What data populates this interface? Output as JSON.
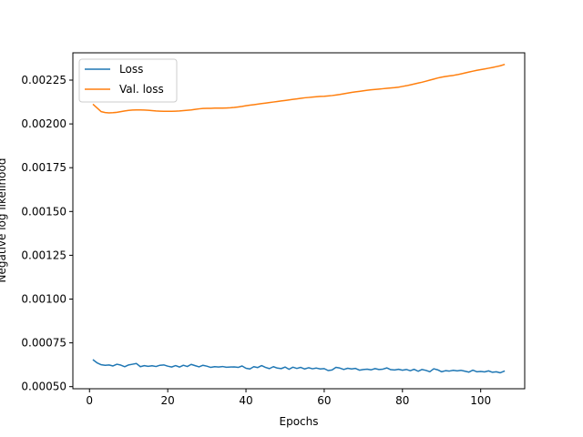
{
  "chart_data": {
    "type": "line",
    "title": "",
    "xlabel": "Epochs",
    "ylabel": "Negative log likelihood",
    "xlim": [
      -4.25,
      111.25
    ],
    "ylim": [
      0.000488,
      0.002406
    ],
    "xticks": [
      0,
      20,
      40,
      60,
      80,
      100
    ],
    "xtick_labels": [
      "0",
      "20",
      "40",
      "60",
      "80",
      "100"
    ],
    "yticks": [
      0.0005,
      0.00075,
      0.001,
      0.00125,
      0.0015,
      0.00175,
      0.002,
      0.00225
    ],
    "ytick_labels": [
      "0.00050",
      "0.00075",
      "0.00100",
      "0.00125",
      "0.00150",
      "0.00175",
      "0.00200",
      "0.00225"
    ],
    "grid": false,
    "legend_position": "upper-left",
    "series": [
      {
        "name": "Loss",
        "color": "#1f77b4",
        "x": [
          1,
          2,
          3,
          4,
          5,
          6,
          7,
          8,
          9,
          10,
          11,
          12,
          13,
          14,
          15,
          16,
          17,
          18,
          19,
          20,
          21,
          22,
          23,
          24,
          25,
          26,
          27,
          28,
          29,
          30,
          31,
          32,
          33,
          34,
          35,
          36,
          37,
          38,
          39,
          40,
          41,
          42,
          43,
          44,
          45,
          46,
          47,
          48,
          49,
          50,
          51,
          52,
          53,
          54,
          55,
          56,
          57,
          58,
          59,
          60,
          61,
          62,
          63,
          64,
          65,
          66,
          67,
          68,
          69,
          70,
          71,
          72,
          73,
          74,
          75,
          76,
          77,
          78,
          79,
          80,
          81,
          82,
          83,
          84,
          85,
          86,
          87,
          88,
          89,
          90,
          91,
          92,
          93,
          94,
          95,
          96,
          97,
          98,
          99,
          100,
          101,
          102,
          103,
          104,
          105,
          106
        ],
        "y": [
          0.000652,
          0.000635,
          0.000625,
          0.000622,
          0.000624,
          0.000618,
          0.000628,
          0.000623,
          0.000614,
          0.000624,
          0.000628,
          0.000632,
          0.000614,
          0.00062,
          0.000616,
          0.000619,
          0.000615,
          0.000622,
          0.000624,
          0.000617,
          0.000612,
          0.00062,
          0.000612,
          0.000622,
          0.000615,
          0.000627,
          0.00062,
          0.000613,
          0.000622,
          0.000617,
          0.00061,
          0.000614,
          0.000612,
          0.000615,
          0.000611,
          0.000612,
          0.000613,
          0.00061,
          0.000618,
          0.000605,
          0.000601,
          0.000614,
          0.000609,
          0.00062,
          0.00061,
          0.000603,
          0.000614,
          0.000606,
          0.000603,
          0.000612,
          0.000599,
          0.000611,
          0.000604,
          0.00061,
          0.000601,
          0.000608,
          0.000602,
          0.000606,
          0.000601,
          0.000603,
          0.000592,
          0.000595,
          0.00061,
          0.000606,
          0.000598,
          0.000605,
          0.000601,
          0.000604,
          0.000594,
          0.000598,
          0.0006,
          0.000596,
          0.000603,
          0.000598,
          0.0006,
          0.000607,
          0.000597,
          0.000595,
          0.000599,
          0.000594,
          0.000598,
          0.000591,
          0.000599,
          0.000588,
          0.000598,
          0.000593,
          0.000585,
          0.000602,
          0.000596,
          0.000585,
          0.000591,
          0.000589,
          0.000593,
          0.00059,
          0.000593,
          0.000588,
          0.000583,
          0.000594,
          0.000585,
          0.000587,
          0.000584,
          0.00059,
          0.000582,
          0.000585,
          0.000579,
          0.000588
        ]
      },
      {
        "name": "Val. loss",
        "color": "#ff7f0e",
        "x": [
          1,
          2,
          3,
          4,
          5,
          6,
          7,
          8,
          9,
          10,
          11,
          12,
          13,
          14,
          15,
          16,
          17,
          18,
          19,
          20,
          21,
          22,
          23,
          24,
          25,
          26,
          27,
          28,
          29,
          30,
          31,
          32,
          33,
          34,
          35,
          36,
          37,
          38,
          39,
          40,
          41,
          42,
          43,
          44,
          45,
          46,
          47,
          48,
          49,
          50,
          51,
          52,
          53,
          54,
          55,
          56,
          57,
          58,
          59,
          60,
          61,
          62,
          63,
          64,
          65,
          66,
          67,
          68,
          69,
          70,
          71,
          72,
          73,
          74,
          75,
          76,
          77,
          78,
          79,
          80,
          81,
          82,
          83,
          84,
          85,
          86,
          87,
          88,
          89,
          90,
          91,
          92,
          93,
          94,
          95,
          96,
          97,
          98,
          99,
          100,
          101,
          102,
          103,
          104,
          105,
          106
        ],
        "y": [
          0.00211,
          0.00209,
          0.00207,
          0.002065,
          0.002063,
          0.002064,
          0.002066,
          0.00207,
          0.002074,
          0.002077,
          0.002079,
          0.00208,
          0.00208,
          0.002079,
          0.002078,
          0.002076,
          0.002074,
          0.002073,
          0.002072,
          0.002072,
          0.002072,
          0.002073,
          0.002074,
          0.002076,
          0.002078,
          0.00208,
          0.002083,
          0.002086,
          0.002088,
          0.002089,
          0.002089,
          0.00209,
          0.00209,
          0.00209,
          0.002091,
          0.002092,
          0.002094,
          0.002097,
          0.0021,
          0.002104,
          0.002107,
          0.00211,
          0.002113,
          0.002116,
          0.002119,
          0.002122,
          0.002125,
          0.002128,
          0.002131,
          0.002134,
          0.002137,
          0.00214,
          0.002143,
          0.002146,
          0.002149,
          0.002151,
          0.002153,
          0.002155,
          0.002157,
          0.002158,
          0.00216,
          0.002162,
          0.002165,
          0.002168,
          0.002172,
          0.002176,
          0.00218,
          0.002183,
          0.002186,
          0.002189,
          0.002192,
          0.002195,
          0.002197,
          0.002199,
          0.002201,
          0.002203,
          0.002205,
          0.002207,
          0.00221,
          0.002214,
          0.002218,
          0.002223,
          0.002228,
          0.002233,
          0.002238,
          0.002244,
          0.00225,
          0.002256,
          0.002262,
          0.002267,
          0.002271,
          0.002274,
          0.002277,
          0.002281,
          0.002286,
          0.002291,
          0.002296,
          0.002301,
          0.002306,
          0.00231,
          0.002314,
          0.002318,
          0.002322,
          0.002327,
          0.002332,
          0.002339
        ]
      }
    ]
  }
}
